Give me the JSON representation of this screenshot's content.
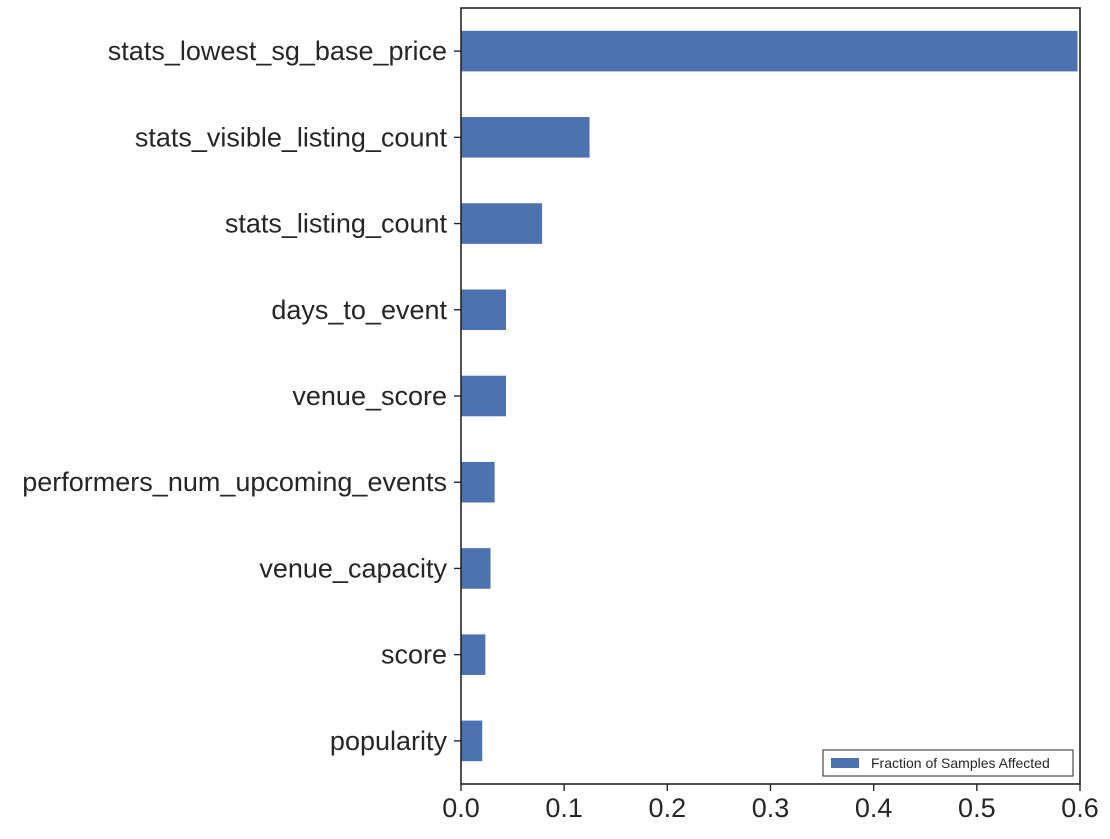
{
  "chart_data": {
    "type": "bar",
    "orientation": "horizontal",
    "title": "",
    "xlabel": "",
    "ylabel": "",
    "categories": [
      "stats_lowest_sg_base_price",
      "stats_visible_listing_count",
      "stats_listing_count",
      "days_to_event",
      "venue_score",
      "performers_num_upcoming_events",
      "venue_capacity",
      "score",
      "popularity"
    ],
    "series": [
      {
        "name": "Fraction of Samples Affected",
        "color": "#4c72b0",
        "values": [
          0.598,
          0.125,
          0.079,
          0.044,
          0.044,
          0.033,
          0.029,
          0.024,
          0.021
        ]
      }
    ],
    "xlim": [
      0,
      0.6
    ],
    "xticks": [
      0.0,
      0.1,
      0.2,
      0.3,
      0.4,
      0.5,
      0.6
    ],
    "xtick_labels": [
      "0.0",
      "0.1",
      "0.2",
      "0.3",
      "0.4",
      "0.5",
      "0.6"
    ],
    "grid": false,
    "legend": {
      "position": "lower-right",
      "entries": [
        "Fraction of Samples Affected"
      ]
    }
  }
}
